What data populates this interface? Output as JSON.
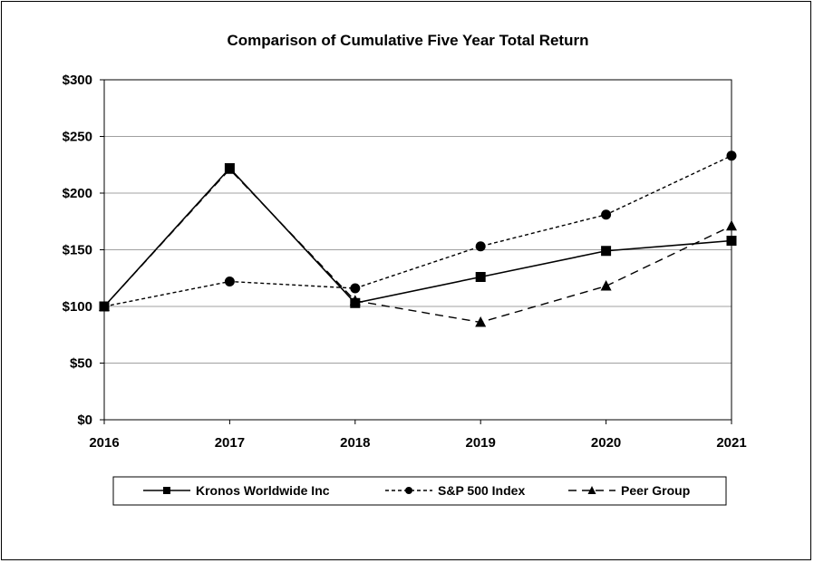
{
  "chart_data": {
    "type": "line",
    "title": "Comparison of Cumulative Five Year Total Return",
    "xlabel": "",
    "ylabel": "",
    "categories": [
      "2016",
      "2017",
      "2018",
      "2019",
      "2020",
      "2021"
    ],
    "y_ticks": [
      "$0",
      "$50",
      "$100",
      "$150",
      "$200",
      "$250",
      "$300"
    ],
    "ylim": [
      0,
      300
    ],
    "grid": true,
    "legend_position": "bottom",
    "series": [
      {
        "name": "Kronos Worldwide Inc",
        "values": [
          100,
          222,
          103,
          126,
          149,
          158
        ],
        "marker": "square",
        "dash": "solid",
        "color": "#000000"
      },
      {
        "name": "S&P 500 Index",
        "values": [
          100,
          122,
          116,
          153,
          181,
          233
        ],
        "marker": "circle",
        "dash": "dotted",
        "color": "#000000"
      },
      {
        "name": "Peer Group",
        "values": [
          100,
          221,
          105,
          86,
          118,
          171
        ],
        "marker": "triangle",
        "dash": "dashed",
        "color": "#000000"
      }
    ]
  }
}
